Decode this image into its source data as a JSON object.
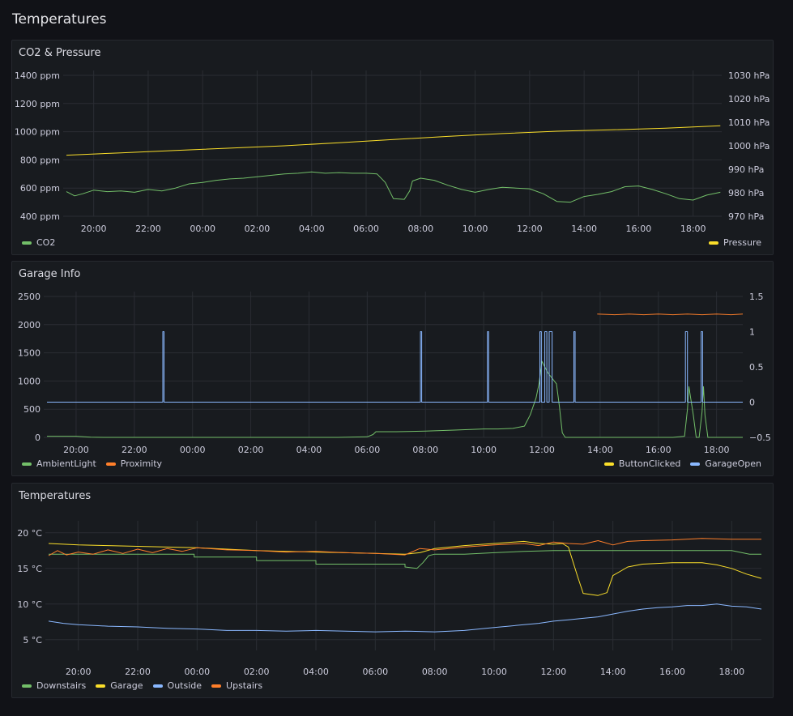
{
  "dashboard": {
    "title": "Temperatures"
  },
  "colors": {
    "green": "#73bf69",
    "yellow": "#fade2a",
    "blue": "#8ab8ff",
    "orange": "#ff7f2a",
    "grid": "#2a2d33"
  },
  "panels": [
    {
      "title": "CO2 & Pressure"
    },
    {
      "title": "Garage Info"
    },
    {
      "title": "Temperatures"
    }
  ],
  "chart_data": [
    {
      "type": "line",
      "title": "CO2 & Pressure",
      "x_ticks": [
        "20:00",
        "22:00",
        "00:00",
        "02:00",
        "04:00",
        "06:00",
        "08:00",
        "10:00",
        "12:00",
        "14:00",
        "16:00",
        "18:00"
      ],
      "x_range": [
        19.0,
        43.05
      ],
      "y_left": {
        "ticks": [
          "400 ppm",
          "600 ppm",
          "800 ppm",
          "1000 ppm",
          "1200 ppm",
          "1400 ppm"
        ],
        "range": [
          400,
          1400
        ]
      },
      "y_right": {
        "ticks": [
          "970 hPa",
          "980 hPa",
          "990 hPa",
          "1000 hPa",
          "1010 hPa",
          "1020 hPa",
          "1030 hPa"
        ],
        "range": [
          970,
          1030
        ]
      },
      "legend_left": [
        {
          "name": "CO2",
          "color": "#73bf69"
        }
      ],
      "legend_right": [
        {
          "name": "Pressure",
          "color": "#fade2a"
        }
      ],
      "series": [
        {
          "name": "CO2",
          "axis": "left",
          "color": "#73bf69",
          "x": [
            19.0,
            19.3,
            19.6,
            20.0,
            20.5,
            21.0,
            21.5,
            22.0,
            22.5,
            23.0,
            23.5,
            24.0,
            24.5,
            25.0,
            25.5,
            26.0,
            26.5,
            27.0,
            27.5,
            28.0,
            28.5,
            29.0,
            29.5,
            30.0,
            30.4,
            30.7,
            31.0,
            31.4,
            31.6,
            31.7,
            32.0,
            32.5,
            33.0,
            33.5,
            34.0,
            34.5,
            35.0,
            35.5,
            36.0,
            36.5,
            37.0,
            37.5,
            38.0,
            38.5,
            39.0,
            39.5,
            40.0,
            40.5,
            41.0,
            41.5,
            42.0,
            42.5,
            43.0
          ],
          "y": [
            575,
            545,
            560,
            585,
            575,
            580,
            570,
            590,
            580,
            600,
            630,
            640,
            655,
            665,
            670,
            680,
            690,
            700,
            705,
            715,
            705,
            710,
            705,
            705,
            700,
            640,
            525,
            520,
            580,
            650,
            670,
            655,
            620,
            590,
            570,
            590,
            605,
            600,
            595,
            560,
            505,
            500,
            540,
            555,
            575,
            610,
            615,
            590,
            560,
            525,
            515,
            550,
            570
          ]
        },
        {
          "name": "Pressure",
          "axis": "right",
          "color": "#fade2a",
          "x": [
            19.0,
            21.0,
            23.0,
            25.0,
            27.0,
            29.0,
            31.0,
            33.0,
            35.0,
            37.0,
            39.0,
            41.0,
            43.0
          ],
          "y": [
            996.0,
            997.0,
            998.0,
            999.0,
            1000.0,
            1001.3,
            1002.7,
            1004.0,
            1005.2,
            1006.2,
            1006.8,
            1007.5,
            1008.5
          ]
        }
      ]
    },
    {
      "type": "line",
      "title": "Garage Info",
      "x_ticks": [
        "20:00",
        "22:00",
        "00:00",
        "02:00",
        "04:00",
        "06:00",
        "08:00",
        "10:00",
        "12:00",
        "14:00",
        "16:00",
        "18:00"
      ],
      "x_range": [
        19.0,
        42.9
      ],
      "y_left": {
        "ticks": [
          "0",
          "500",
          "1000",
          "1500",
          "2000",
          "2500"
        ],
        "range": [
          0,
          2500
        ]
      },
      "y_right": {
        "ticks": [
          "−0.5",
          "0",
          "0.5",
          "1",
          "1.5"
        ],
        "range": [
          -0.5,
          1.5
        ]
      },
      "legend_left": [
        {
          "name": "AmbientLight",
          "color": "#73bf69"
        },
        {
          "name": "Proximity",
          "color": "#ff7f2a"
        }
      ],
      "legend_right": [
        {
          "name": "ButtonClicked",
          "color": "#fade2a"
        },
        {
          "name": "GarageOpen",
          "color": "#8ab8ff"
        }
      ],
      "series": [
        {
          "name": "AmbientLight",
          "axis": "left",
          "color": "#73bf69",
          "x": [
            19.0,
            20.0,
            20.5,
            21.0,
            22.0,
            23.0,
            24.0,
            25.0,
            26.0,
            27.0,
            28.0,
            29.0,
            30.0,
            30.2,
            30.3,
            31.0,
            32.0,
            33.0,
            34.0,
            34.5,
            35.0,
            35.4,
            35.6,
            35.8,
            35.9,
            36.0,
            36.2,
            36.5,
            36.6,
            36.7,
            36.8,
            37.0,
            37.5,
            38.0,
            38.5,
            39.0,
            39.5,
            40.0,
            40.5,
            40.9,
            41.0,
            41.05,
            41.2,
            41.3,
            41.4,
            41.5,
            41.55,
            41.6,
            41.7,
            42.0,
            42.9
          ],
          "y": [
            20,
            20,
            5,
            0,
            0,
            0,
            0,
            0,
            0,
            0,
            0,
            0,
            10,
            50,
            100,
            100,
            110,
            130,
            150,
            150,
            160,
            200,
            400,
            700,
            950,
            1350,
            1150,
            950,
            550,
            80,
            0,
            0,
            0,
            0,
            0,
            0,
            0,
            0,
            0,
            20,
            500,
            900,
            400,
            0,
            0,
            450,
            900,
            400,
            0,
            0,
            0
          ]
        },
        {
          "name": "Proximity",
          "axis": "right",
          "color": "#ff7f2a",
          "x": [
            37.9,
            38.5,
            39.0,
            39.5,
            40.0,
            40.5,
            41.0,
            41.5,
            42.0,
            42.5,
            42.9
          ],
          "y": [
            1.25,
            1.24,
            1.25,
            1.24,
            1.25,
            1.24,
            1.25,
            1.24,
            1.25,
            1.24,
            1.25
          ]
        },
        {
          "name": "GarageOpen",
          "axis": "right",
          "color": "#8ab8ff",
          "x": [
            19.0,
            22.98,
            22.98,
            23.02,
            23.02,
            31.83,
            31.83,
            31.87,
            31.87,
            34.13,
            34.13,
            34.17,
            34.17,
            35.93,
            35.93,
            35.98,
            35.98,
            36.1,
            36.1,
            36.17,
            36.17,
            36.25,
            36.25,
            36.35,
            36.35,
            36.45,
            36.45,
            37.1,
            37.1,
            37.14,
            37.14,
            40.93,
            40.93,
            41.0,
            41.0,
            41.47,
            41.47,
            41.52,
            41.52,
            42.9
          ],
          "y": [
            0,
            0,
            1,
            1,
            0,
            0,
            1,
            1,
            0,
            0,
            1,
            1,
            0,
            0,
            1,
            1,
            0,
            0,
            1,
            1,
            0,
            0,
            1,
            1,
            0,
            0,
            0,
            0,
            1,
            1,
            0,
            0,
            1,
            1,
            0,
            0,
            1,
            1,
            0,
            0
          ]
        }
      ]
    },
    {
      "type": "line",
      "title": "Temperatures",
      "x_ticks": [
        "20:00",
        "22:00",
        "00:00",
        "02:00",
        "04:00",
        "06:00",
        "08:00",
        "10:00",
        "12:00",
        "14:00",
        "16:00",
        "18:00"
      ],
      "x_range": [
        19.0,
        43.0
      ],
      "y_left": {
        "ticks": [
          "5 °C",
          "10 °C",
          "15 °C",
          "20 °C"
        ],
        "range": [
          3.5,
          21.0
        ]
      },
      "legend_left": [
        {
          "name": "Downstairs",
          "color": "#73bf69"
        },
        {
          "name": "Garage",
          "color": "#fade2a"
        },
        {
          "name": "Outside",
          "color": "#8ab8ff"
        },
        {
          "name": "Upstairs",
          "color": "#ff7f2a"
        }
      ],
      "series": [
        {
          "name": "Downstairs",
          "color": "#73bf69",
          "x": [
            19.0,
            20.0,
            21.0,
            22.0,
            23.0,
            23.9,
            23.9,
            26.0,
            26.0,
            28.0,
            28.0,
            31.0,
            31.0,
            31.4,
            31.6,
            31.8,
            32.0,
            32.5,
            33.0,
            34.0,
            35.0,
            36.0,
            37.0,
            37.5,
            38.0,
            39.0,
            40.0,
            41.0,
            42.0,
            42.6,
            43.0
          ],
          "y": [
            17.0,
            17.0,
            17.0,
            17.0,
            17.0,
            17.0,
            16.6,
            16.6,
            16.1,
            16.1,
            15.6,
            15.6,
            15.2,
            15.0,
            15.8,
            16.8,
            17.0,
            17.0,
            17.0,
            17.2,
            17.4,
            17.5,
            17.5,
            17.5,
            17.5,
            17.5,
            17.5,
            17.5,
            17.5,
            17.0,
            17.0
          ]
        },
        {
          "name": "Garage",
          "color": "#fade2a",
          "x": [
            19.0,
            20.0,
            21.0,
            22.0,
            23.0,
            24.0,
            25.0,
            26.0,
            27.0,
            28.0,
            29.0,
            30.0,
            31.0,
            31.5,
            32.0,
            33.0,
            34.0,
            35.0,
            35.5,
            36.0,
            36.3,
            36.5,
            36.8,
            37.0,
            37.5,
            37.8,
            38.0,
            38.5,
            39.0,
            40.0,
            41.0,
            41.5,
            42.0,
            42.5,
            43.0
          ],
          "y": [
            18.5,
            18.3,
            18.2,
            18.1,
            18.0,
            17.9,
            17.7,
            17.5,
            17.4,
            17.3,
            17.2,
            17.1,
            17.0,
            17.2,
            17.8,
            18.2,
            18.5,
            18.8,
            18.5,
            18.4,
            18.5,
            18.0,
            14.0,
            11.5,
            11.2,
            11.6,
            14.0,
            15.2,
            15.6,
            15.8,
            15.8,
            15.5,
            15.0,
            14.2,
            13.6
          ]
        },
        {
          "name": "Outside",
          "color": "#8ab8ff",
          "x": [
            19.0,
            19.5,
            20.0,
            21.0,
            22.0,
            23.0,
            24.0,
            25.0,
            26.0,
            27.0,
            28.0,
            29.0,
            30.0,
            31.0,
            32.0,
            33.0,
            34.0,
            35.0,
            35.5,
            36.0,
            36.5,
            37.0,
            37.5,
            38.0,
            38.5,
            39.0,
            39.5,
            40.0,
            40.5,
            41.0,
            41.5,
            42.0,
            42.5,
            43.0
          ],
          "y": [
            7.6,
            7.3,
            7.1,
            6.9,
            6.8,
            6.6,
            6.5,
            6.3,
            6.3,
            6.2,
            6.3,
            6.2,
            6.1,
            6.2,
            6.1,
            6.3,
            6.7,
            7.1,
            7.3,
            7.6,
            7.8,
            8.0,
            8.2,
            8.6,
            9.0,
            9.3,
            9.5,
            9.6,
            9.8,
            9.8,
            10.0,
            9.7,
            9.6,
            9.3
          ]
        },
        {
          "name": "Upstairs",
          "color": "#ff7f2a",
          "x": [
            19.0,
            19.3,
            19.6,
            20.0,
            20.5,
            21.0,
            21.5,
            22.0,
            22.5,
            23.0,
            23.5,
            24.0,
            25.0,
            26.0,
            27.0,
            28.0,
            29.0,
            30.0,
            31.0,
            31.5,
            32.0,
            32.5,
            33.0,
            34.0,
            35.0,
            35.5,
            36.0,
            36.5,
            37.0,
            37.5,
            38.0,
            38.5,
            39.0,
            40.0,
            41.0,
            42.0,
            43.0
          ],
          "y": [
            16.8,
            17.5,
            16.9,
            17.3,
            17.0,
            17.6,
            17.1,
            17.7,
            17.2,
            17.8,
            17.4,
            17.9,
            17.6,
            17.5,
            17.3,
            17.4,
            17.2,
            17.1,
            16.9,
            17.8,
            17.6,
            17.8,
            18.0,
            18.3,
            18.5,
            18.2,
            18.7,
            18.5,
            18.4,
            18.9,
            18.3,
            18.8,
            18.9,
            19.0,
            19.2,
            19.1,
            19.1
          ]
        }
      ]
    }
  ]
}
